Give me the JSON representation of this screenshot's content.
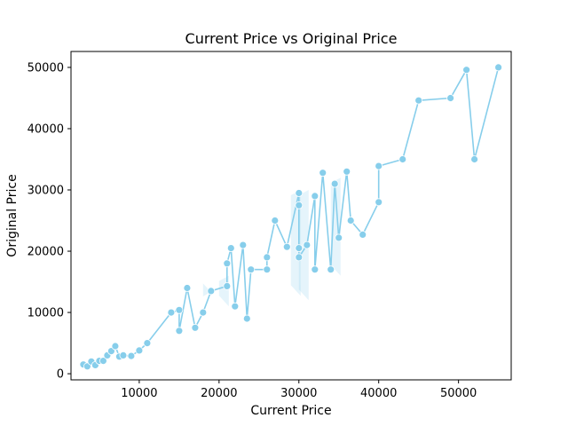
{
  "chart_data": {
    "type": "line",
    "title": "Current Price vs Original Price",
    "xlabel": "Current Price",
    "ylabel": "Original Price",
    "xlim": [
      1450,
      56600
    ],
    "ylim": [
      -1000,
      52600
    ],
    "xticks": [
      10000,
      20000,
      30000,
      40000,
      50000
    ],
    "yticks": [
      0,
      10000,
      20000,
      30000,
      40000,
      50000
    ],
    "grid": false,
    "legend": "none",
    "line_color": "#87CEEB",
    "series": [
      {
        "x": [
          3000,
          3500,
          4000,
          4500,
          5000,
          5500,
          6000,
          6500,
          7000,
          7500,
          8000,
          9000,
          10000,
          11000,
          14000,
          15000,
          15000,
          16000,
          17000,
          18000,
          19000,
          21000,
          21000,
          21500,
          22000,
          23000,
          23500,
          24000,
          26000,
          26000,
          27000,
          28500,
          30000,
          30000,
          30000,
          30000,
          31000,
          32000,
          32000,
          33000,
          34000,
          34500,
          35000,
          36000,
          36500,
          38000,
          40000,
          40000,
          43000,
          45000,
          49000,
          51000,
          52000,
          55000
        ],
        "y": [
          1500,
          1200,
          2000,
          1400,
          2100,
          2100,
          3000,
          3700,
          4500,
          2800,
          3000,
          2900,
          3800,
          5000,
          10000,
          10400,
          7000,
          14000,
          7500,
          10000,
          13500,
          14300,
          18000,
          20500,
          11000,
          21000,
          9000,
          17000,
          17000,
          19000,
          25000,
          20700,
          29500,
          27500,
          20500,
          19000,
          21000,
          29000,
          17000,
          32800,
          17000,
          31000,
          22200,
          33000,
          25000,
          22700,
          28000,
          33900,
          35000,
          44600,
          45000,
          49600,
          35000,
          50000
        ]
      }
    ],
    "confidence_band": {
      "x": [
        19000,
        21000,
        30000,
        31000,
        35000
      ],
      "lower": [
        13000,
        11000,
        12700,
        12000,
        16000
      ],
      "upper": [
        13500,
        16000,
        30000,
        30000,
        32000
      ]
    }
  }
}
